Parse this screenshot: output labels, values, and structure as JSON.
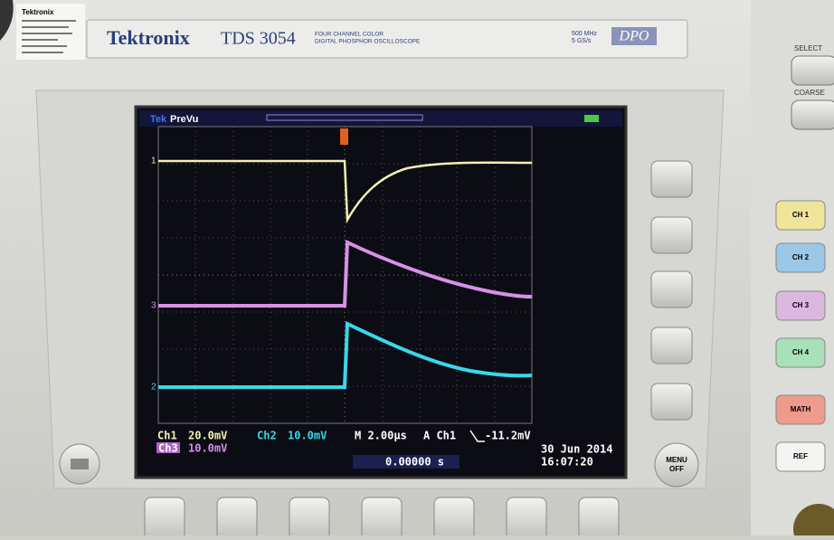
{
  "sticker": {
    "brand": "Tektronix"
  },
  "header": {
    "brand": "Tektronix",
    "model": "TDS 3054",
    "description": [
      "FOUR CHANNEL COLOR",
      "DIGITAL PHOSPHOR OSCILLOSCOPE"
    ],
    "specs": [
      "500 MHz",
      "5 GS/s"
    ],
    "badge": "DPO"
  },
  "side_panel": {
    "select": "SELECT",
    "coarse": "COARSE",
    "channels": [
      "CH 1",
      "CH 2",
      "CH 3",
      "CH 4"
    ],
    "math": "MATH",
    "ref": "REF"
  },
  "screen": {
    "logo": "Tek",
    "mode": "PreVu",
    "markers": [
      "1",
      "3",
      "2"
    ],
    "readout": {
      "ch1": "Ch1",
      "ch1_scale": "20.0mV",
      "ch2": "Ch2",
      "ch2_scale": "10.0mV",
      "timebase": "M 2.00µs",
      "trigger": "A  Ch1",
      "trigger_level": "-11.2mV",
      "ch3": "Ch3",
      "ch3_scale": "10.0mV",
      "position": "0.00000 s",
      "date": "30 Jun  2014",
      "time": "16:07:20"
    }
  },
  "menu_button": [
    "MENU",
    "OFF"
  ]
}
